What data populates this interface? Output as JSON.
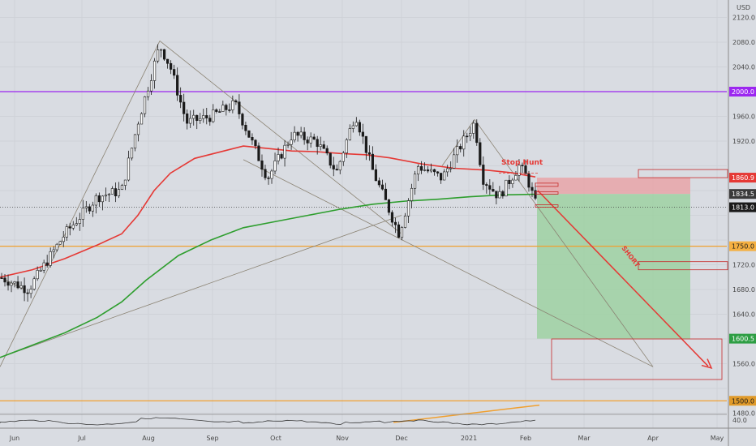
{
  "chart_data": {
    "type": "candlestick",
    "currency": "USD",
    "x_ticks": [
      "Jun",
      "Jul",
      "Aug",
      "Sep",
      "Oct",
      "Nov",
      "Dec",
      "2021",
      "Feb",
      "Mar",
      "Apr",
      "May"
    ],
    "y_ticks": [
      1480.0,
      1520.0,
      1560.0,
      1600.0,
      1640.0,
      1680.0,
      1720.0,
      1760.0,
      1800.0,
      1840.0,
      1880.0,
      1920.0,
      1960.0,
      2000.0,
      2040.0,
      2080.0,
      2120.0
    ],
    "y_ticks_hidden_by_tags": [
      1520.0,
      1760.0,
      1800.0,
      1840.0,
      1880.0,
      2000.0
    ],
    "ylim": [
      1460,
      2125
    ],
    "price_tags": [
      {
        "label": "2000.0",
        "value": 2000.0,
        "bg": "#9c27f0",
        "fg": "#ffffff"
      },
      {
        "label": "1860.9",
        "value": 1860.9,
        "bg": "#e53935",
        "fg": "#ffffff"
      },
      {
        "label": "1834.5",
        "value": 1834.5,
        "bg": "#3a3a3a",
        "fg": "#ffffff"
      },
      {
        "label": "1813.0",
        "value": 1813.0,
        "bg": "#1a1a1a",
        "fg": "#ffffff"
      },
      {
        "label": "1750.0",
        "value": 1750.0,
        "bg": "#f5b042",
        "fg": "#1a1a1a"
      },
      {
        "label": "1600.5",
        "value": 1600.5,
        "bg": "#2e9e44",
        "fg": "#ffffff"
      },
      {
        "label": "1500.0",
        "value": 1500.0,
        "bg": "#e09a2a",
        "fg": "#1a1a1a"
      }
    ],
    "horizontal_levels": [
      {
        "value": 2000.0,
        "color": "#9c27f0"
      },
      {
        "value": 1750.0,
        "color": "#f0a030"
      },
      {
        "value": 1500.0,
        "color": "#f0a030"
      }
    ],
    "current_price": 1813.0,
    "position": {
      "side": "short",
      "entry": 1834.5,
      "stop": 1860.9,
      "target": 1600.5
    },
    "annotations": [
      {
        "text": "Stop Hunt",
        "color": "#e53935"
      },
      {
        "text": "SHORT",
        "color": "#e53935"
      }
    ],
    "indicator_label": "40.0",
    "series": [
      {
        "name": "",
        "kind": "ma-slow",
        "color": "#2e9e2e",
        "points": [
          [
            0,
            1570
          ],
          [
            40,
            1590
          ],
          [
            80,
            1610
          ],
          [
            120,
            1635
          ],
          [
            150,
            1660
          ],
          [
            180,
            1695
          ],
          [
            220,
            1735
          ],
          [
            260,
            1760
          ],
          [
            300,
            1780
          ],
          [
            340,
            1790
          ],
          [
            380,
            1800
          ],
          [
            420,
            1810
          ],
          [
            460,
            1818
          ],
          [
            500,
            1823
          ],
          [
            540,
            1826
          ],
          [
            580,
            1830
          ],
          [
            620,
            1833
          ],
          [
            660,
            1834
          ]
        ]
      },
      {
        "name": "",
        "kind": "ma-fast",
        "color": "#e53935",
        "points": [
          [
            0,
            1700
          ],
          [
            40,
            1712
          ],
          [
            80,
            1730
          ],
          [
            120,
            1752
          ],
          [
            150,
            1770
          ],
          [
            170,
            1800
          ],
          [
            190,
            1840
          ],
          [
            210,
            1868
          ],
          [
            240,
            1892
          ],
          [
            270,
            1902
          ],
          [
            300,
            1912
          ],
          [
            330,
            1908
          ],
          [
            360,
            1904
          ],
          [
            390,
            1903
          ],
          [
            420,
            1900
          ],
          [
            450,
            1898
          ],
          [
            480,
            1893
          ],
          [
            520,
            1883
          ],
          [
            560,
            1876
          ],
          [
            600,
            1873
          ],
          [
            630,
            1869
          ],
          [
            660,
            1862
          ]
        ]
      }
    ],
    "candles_summary": {
      "start_x": 2,
      "end_x": 660,
      "count": 165,
      "swing_points": [
        [
          0,
          1700
        ],
        [
          35,
          1680
        ],
        [
          80,
          1770
        ],
        [
          120,
          1830
        ],
        [
          150,
          1840
        ],
        [
          170,
          1950
        ],
        [
          197,
          2075
        ],
        [
          210,
          2040
        ],
        [
          230,
          1950
        ],
        [
          260,
          1960
        ],
        [
          290,
          1980
        ],
        [
          310,
          1920
        ],
        [
          330,
          1860
        ],
        [
          360,
          1930
        ],
        [
          390,
          1920
        ],
        [
          415,
          1870
        ],
        [
          438,
          1965
        ],
        [
          460,
          1870
        ],
        [
          492,
          1770
        ],
        [
          515,
          1880
        ],
        [
          545,
          1860
        ],
        [
          560,
          1895
        ],
        [
          585,
          1950
        ],
        [
          595,
          1860
        ],
        [
          615,
          1830
        ],
        [
          640,
          1880
        ],
        [
          650,
          1860
        ],
        [
          661,
          1815
        ]
      ]
    }
  }
}
